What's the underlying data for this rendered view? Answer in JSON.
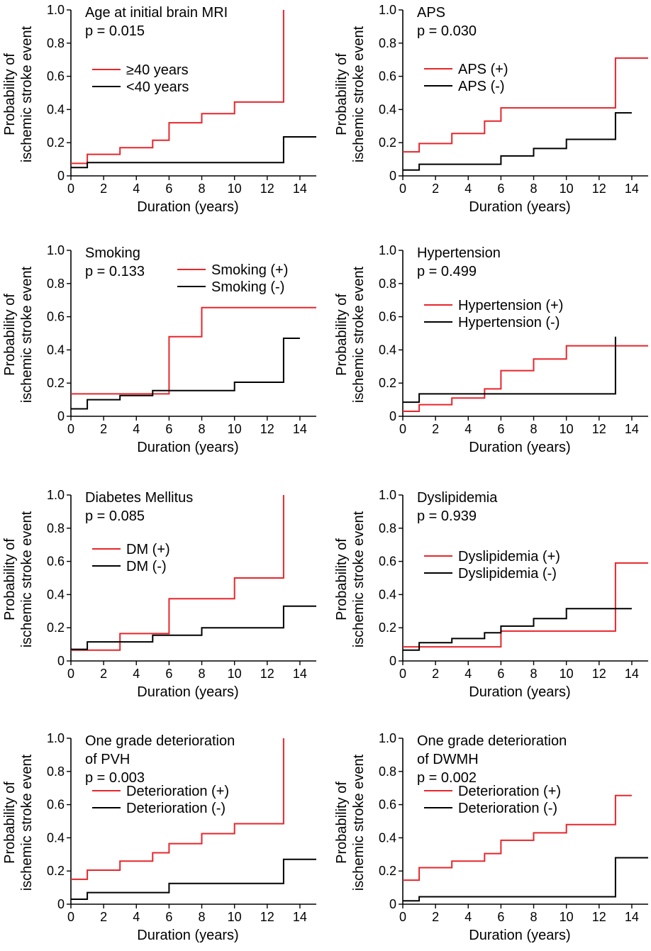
{
  "chart_data": [
    {
      "type": "line",
      "subtype": "step",
      "title_lines": [
        "Age at initial brain MRI"
      ],
      "p_value": "p = 0.015",
      "xlabel": "Duration (years)",
      "ylabel_lines": [
        "Probability of",
        "ischemic stroke event"
      ],
      "xlim": [
        0,
        15
      ],
      "ylim": [
        0,
        1.0
      ],
      "x_ticks": [
        "0",
        "2",
        "4",
        "6",
        "8",
        "10",
        "12",
        "14"
      ],
      "y_ticks": [
        "0",
        "0.2",
        "0.4",
        "0.6",
        "0.8",
        "1.0"
      ],
      "legend_position": "upper-left",
      "series": [
        {
          "name": "≥40 years",
          "color": "#e8262b",
          "x": [
            0,
            1,
            3,
            5,
            6,
            8,
            10,
            13,
            13
          ],
          "y": [
            0.075,
            0.13,
            0.17,
            0.215,
            0.32,
            0.375,
            0.445,
            0.445,
            1.0
          ]
        },
        {
          "name": "<40 years",
          "color": "#000000",
          "x": [
            0,
            1,
            13,
            15
          ],
          "y": [
            0.05,
            0.08,
            0.235,
            0.235
          ]
        }
      ]
    },
    {
      "type": "line",
      "subtype": "step",
      "title_lines": [
        "APS"
      ],
      "p_value": "p = 0.030",
      "xlabel": "Duration (years)",
      "ylabel_lines": [
        "Probability of",
        "ischemic stroke event"
      ],
      "xlim": [
        0,
        15
      ],
      "ylim": [
        0,
        1.0
      ],
      "x_ticks": [
        "0",
        "2",
        "4",
        "6",
        "8",
        "10",
        "12",
        "14"
      ],
      "y_ticks": [
        "0",
        "0.2",
        "0.4",
        "0.6",
        "0.8",
        "1.0"
      ],
      "legend_position": "upper-left",
      "series": [
        {
          "name": "APS (+)",
          "color": "#e8262b",
          "x": [
            0,
            1,
            3,
            5,
            6,
            13,
            15
          ],
          "y": [
            0.145,
            0.195,
            0.255,
            0.33,
            0.41,
            0.71,
            0.71
          ]
        },
        {
          "name": "APS (-)",
          "color": "#000000",
          "x": [
            0,
            1,
            6,
            8,
            10,
            13,
            14
          ],
          "y": [
            0.035,
            0.07,
            0.12,
            0.165,
            0.22,
            0.38,
            0.38
          ]
        }
      ]
    },
    {
      "type": "line",
      "subtype": "step",
      "title_lines": [
        "Smoking"
      ],
      "p_value": "p = 0.133",
      "xlabel": "Duration (years)",
      "ylabel_lines": [
        "Probability of",
        "ischemic stroke event"
      ],
      "xlim": [
        0,
        15
      ],
      "ylim": [
        0,
        1.0
      ],
      "x_ticks": [
        "0",
        "2",
        "4",
        "6",
        "8",
        "10",
        "12",
        "14"
      ],
      "y_ticks": [
        "0",
        "0.2",
        "0.4",
        "0.6",
        "0.8",
        "1.0"
      ],
      "legend_position": "upper-right",
      "series": [
        {
          "name": "Smoking (+)",
          "color": "#e8262b",
          "x": [
            0,
            6,
            8,
            15
          ],
          "y": [
            0.135,
            0.48,
            0.655,
            0.655
          ]
        },
        {
          "name": "Smoking (-)",
          "color": "#000000",
          "x": [
            0,
            1,
            3,
            5,
            10,
            13,
            14
          ],
          "y": [
            0.045,
            0.1,
            0.125,
            0.155,
            0.205,
            0.47,
            0.47
          ]
        }
      ]
    },
    {
      "type": "line",
      "subtype": "step",
      "title_lines": [
        "Hypertension"
      ],
      "p_value": "p = 0.499",
      "xlabel": "Duration (years)",
      "ylabel_lines": [
        "Probability of",
        "ischemic stroke event"
      ],
      "xlim": [
        0,
        15
      ],
      "ylim": [
        0,
        1.0
      ],
      "x_ticks": [
        "0",
        "2",
        "4",
        "6",
        "8",
        "10",
        "12",
        "14"
      ],
      "y_ticks": [
        "0",
        "0.2",
        "0.4",
        "0.6",
        "0.8",
        "1.0"
      ],
      "legend_position": "upper-left",
      "series": [
        {
          "name": "Hypertension (+)",
          "color": "#e8262b",
          "x": [
            0,
            1,
            3,
            5,
            6,
            8,
            10,
            15
          ],
          "y": [
            0.03,
            0.07,
            0.11,
            0.165,
            0.275,
            0.345,
            0.425,
            0.425
          ]
        },
        {
          "name": "Hypertension (-)",
          "color": "#000000",
          "x": [
            0,
            1,
            13,
            13
          ],
          "y": [
            0.085,
            0.135,
            0.135,
            0.48
          ]
        }
      ]
    },
    {
      "type": "line",
      "subtype": "step",
      "title_lines": [
        "Diabetes Mellitus"
      ],
      "p_value": "p = 0.085",
      "xlabel": "Duration (years)",
      "ylabel_lines": [
        "Probability of",
        "ischemic stroke event"
      ],
      "xlim": [
        0,
        15
      ],
      "ylim": [
        0,
        1.0
      ],
      "x_ticks": [
        "0",
        "2",
        "4",
        "6",
        "8",
        "10",
        "12",
        "14"
      ],
      "y_ticks": [
        "0",
        "0.2",
        "0.4",
        "0.6",
        "0.8",
        "1.0"
      ],
      "legend_position": "upper-left",
      "series": [
        {
          "name": "DM (+)",
          "color": "#e8262b",
          "x": [
            0,
            3,
            6,
            10,
            13,
            13
          ],
          "y": [
            0.065,
            0.165,
            0.375,
            0.5,
            0.5,
            1.0
          ]
        },
        {
          "name": "DM (-)",
          "color": "#000000",
          "x": [
            0,
            1,
            5,
            8,
            13,
            15
          ],
          "y": [
            0.07,
            0.115,
            0.155,
            0.2,
            0.33,
            0.33
          ]
        }
      ]
    },
    {
      "type": "line",
      "subtype": "step",
      "title_lines": [
        "Dyslipidemia"
      ],
      "p_value": "p = 0.939",
      "xlabel": "Duration (years)",
      "ylabel_lines": [
        "Probability of",
        "ischemic stroke event"
      ],
      "xlim": [
        0,
        15
      ],
      "ylim": [
        0,
        1.0
      ],
      "x_ticks": [
        "0",
        "2",
        "4",
        "6",
        "8",
        "10",
        "12",
        "14"
      ],
      "y_ticks": [
        "0",
        "0.2",
        "0.4",
        "0.6",
        "0.8",
        "1.0"
      ],
      "legend_position": "upper-left",
      "series": [
        {
          "name": "Dyslipidemia (+)",
          "color": "#e8262b",
          "x": [
            0,
            6,
            13,
            15
          ],
          "y": [
            0.085,
            0.18,
            0.59,
            0.59
          ]
        },
        {
          "name": "Dyslipidemia (-)",
          "color": "#000000",
          "x": [
            0,
            1,
            3,
            5,
            6,
            8,
            10,
            14
          ],
          "y": [
            0.065,
            0.11,
            0.135,
            0.17,
            0.21,
            0.255,
            0.315,
            0.315
          ]
        }
      ]
    },
    {
      "type": "line",
      "subtype": "step",
      "title_lines": [
        "One grade deterioration",
        "of PVH"
      ],
      "p_value": "p = 0.003",
      "xlabel": "Duration (years)",
      "ylabel_lines": [
        "Probability of",
        "ischemic stroke event"
      ],
      "xlim": [
        0,
        15
      ],
      "ylim": [
        0,
        1.0
      ],
      "x_ticks": [
        "0",
        "2",
        "4",
        "6",
        "8",
        "10",
        "12",
        "14"
      ],
      "y_ticks": [
        "0",
        "0.2",
        "0.4",
        "0.6",
        "0.8",
        "1.0"
      ],
      "legend_position": "upper-left",
      "series": [
        {
          "name": "Deterioration (+)",
          "color": "#e8262b",
          "x": [
            0,
            1,
            3,
            5,
            6,
            8,
            10,
            13,
            13
          ],
          "y": [
            0.15,
            0.205,
            0.26,
            0.31,
            0.365,
            0.425,
            0.485,
            0.485,
            1.0
          ]
        },
        {
          "name": "Deterioration (-)",
          "color": "#000000",
          "x": [
            0,
            1,
            6,
            13,
            15
          ],
          "y": [
            0.03,
            0.07,
            0.125,
            0.27,
            0.27
          ]
        }
      ]
    },
    {
      "type": "line",
      "subtype": "step",
      "title_lines": [
        "One grade deterioration",
        "of DWMH"
      ],
      "p_value": "p = 0.002",
      "xlabel": "Duration (years)",
      "ylabel_lines": [
        "Probability of",
        "ischemic stroke event"
      ],
      "xlim": [
        0,
        15
      ],
      "ylim": [
        0,
        1.0
      ],
      "x_ticks": [
        "0",
        "2",
        "4",
        "6",
        "8",
        "10",
        "12",
        "14"
      ],
      "y_ticks": [
        "0",
        "0.2",
        "0.4",
        "0.6",
        "0.8",
        "1.0"
      ],
      "legend_position": "upper-left",
      "series": [
        {
          "name": "Deterioration (+)",
          "color": "#e8262b",
          "x": [
            0,
            1,
            3,
            5,
            6,
            8,
            10,
            13,
            14
          ],
          "y": [
            0.145,
            0.22,
            0.26,
            0.305,
            0.385,
            0.43,
            0.48,
            0.655,
            0.655
          ]
        },
        {
          "name": "Deterioration (-)",
          "color": "#000000",
          "x": [
            0,
            1,
            13,
            15
          ],
          "y": [
            0.02,
            0.045,
            0.28,
            0.28
          ]
        }
      ]
    }
  ]
}
